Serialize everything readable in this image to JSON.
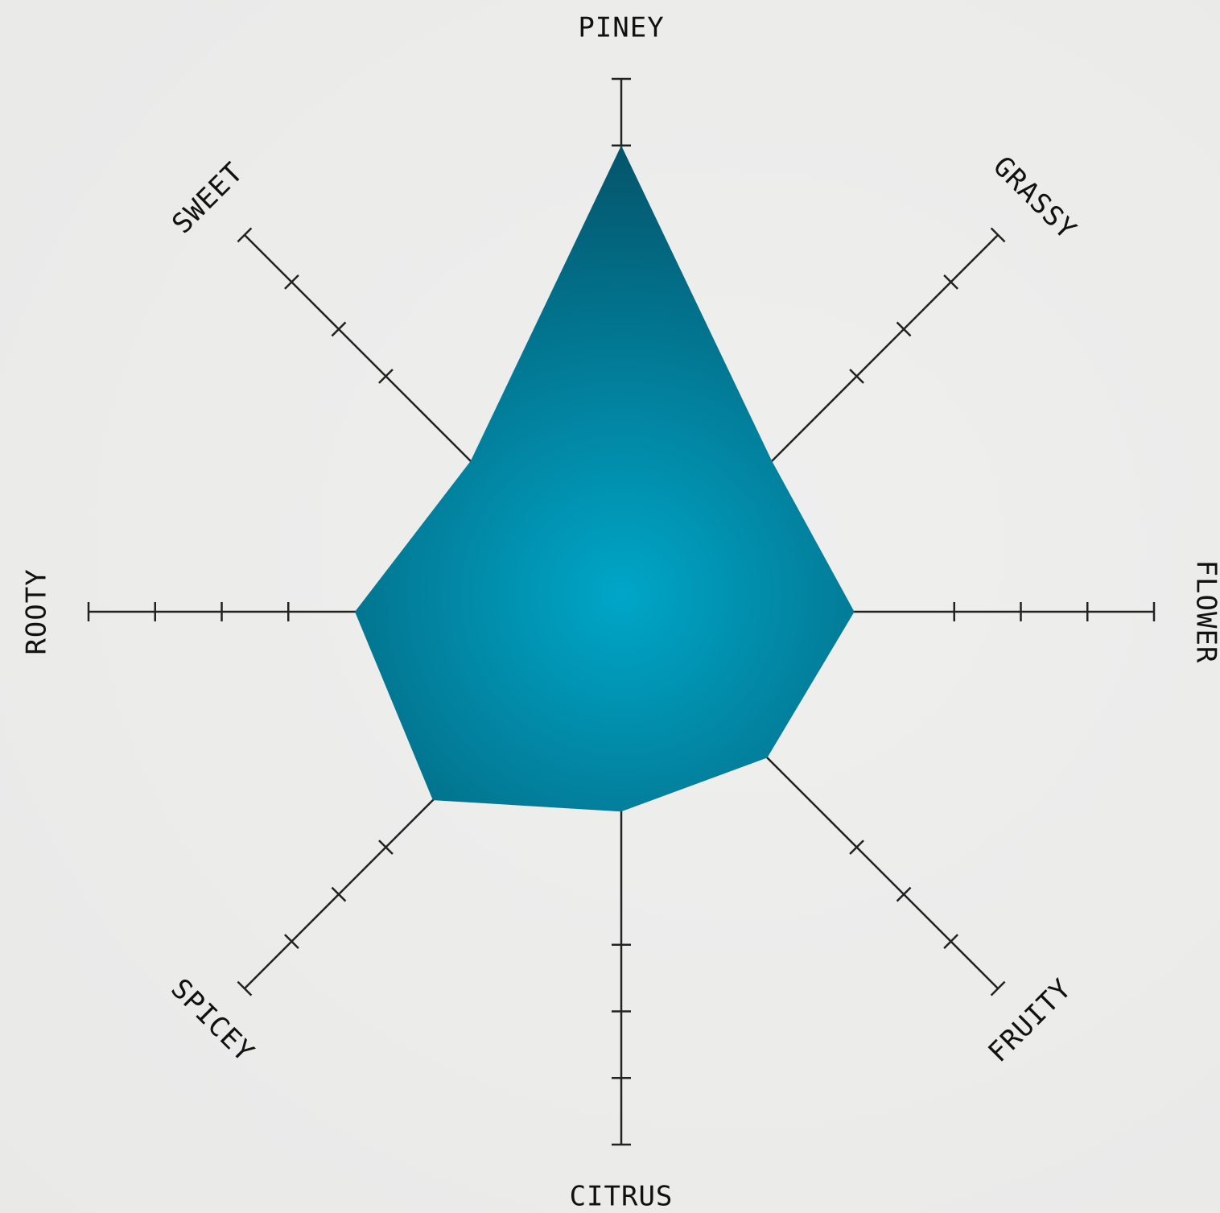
{
  "chart_data": {
    "type": "radar",
    "axes": [
      "PINEY",
      "GRASSY",
      "FLOWER",
      "FRUITY",
      "CITRUS",
      "SPICEY",
      "ROOTY",
      "SWEET"
    ],
    "values": [
      7,
      3.2,
      3.5,
      3.1,
      3.0,
      4.0,
      4.0,
      3.2
    ],
    "max": 8,
    "tick_count": 4,
    "grid": false,
    "legend": "none"
  },
  "colors": {
    "fill_center": "#00a6c8",
    "fill_edge": "#04546a",
    "axis": "#222222",
    "background": "#ececeb"
  }
}
